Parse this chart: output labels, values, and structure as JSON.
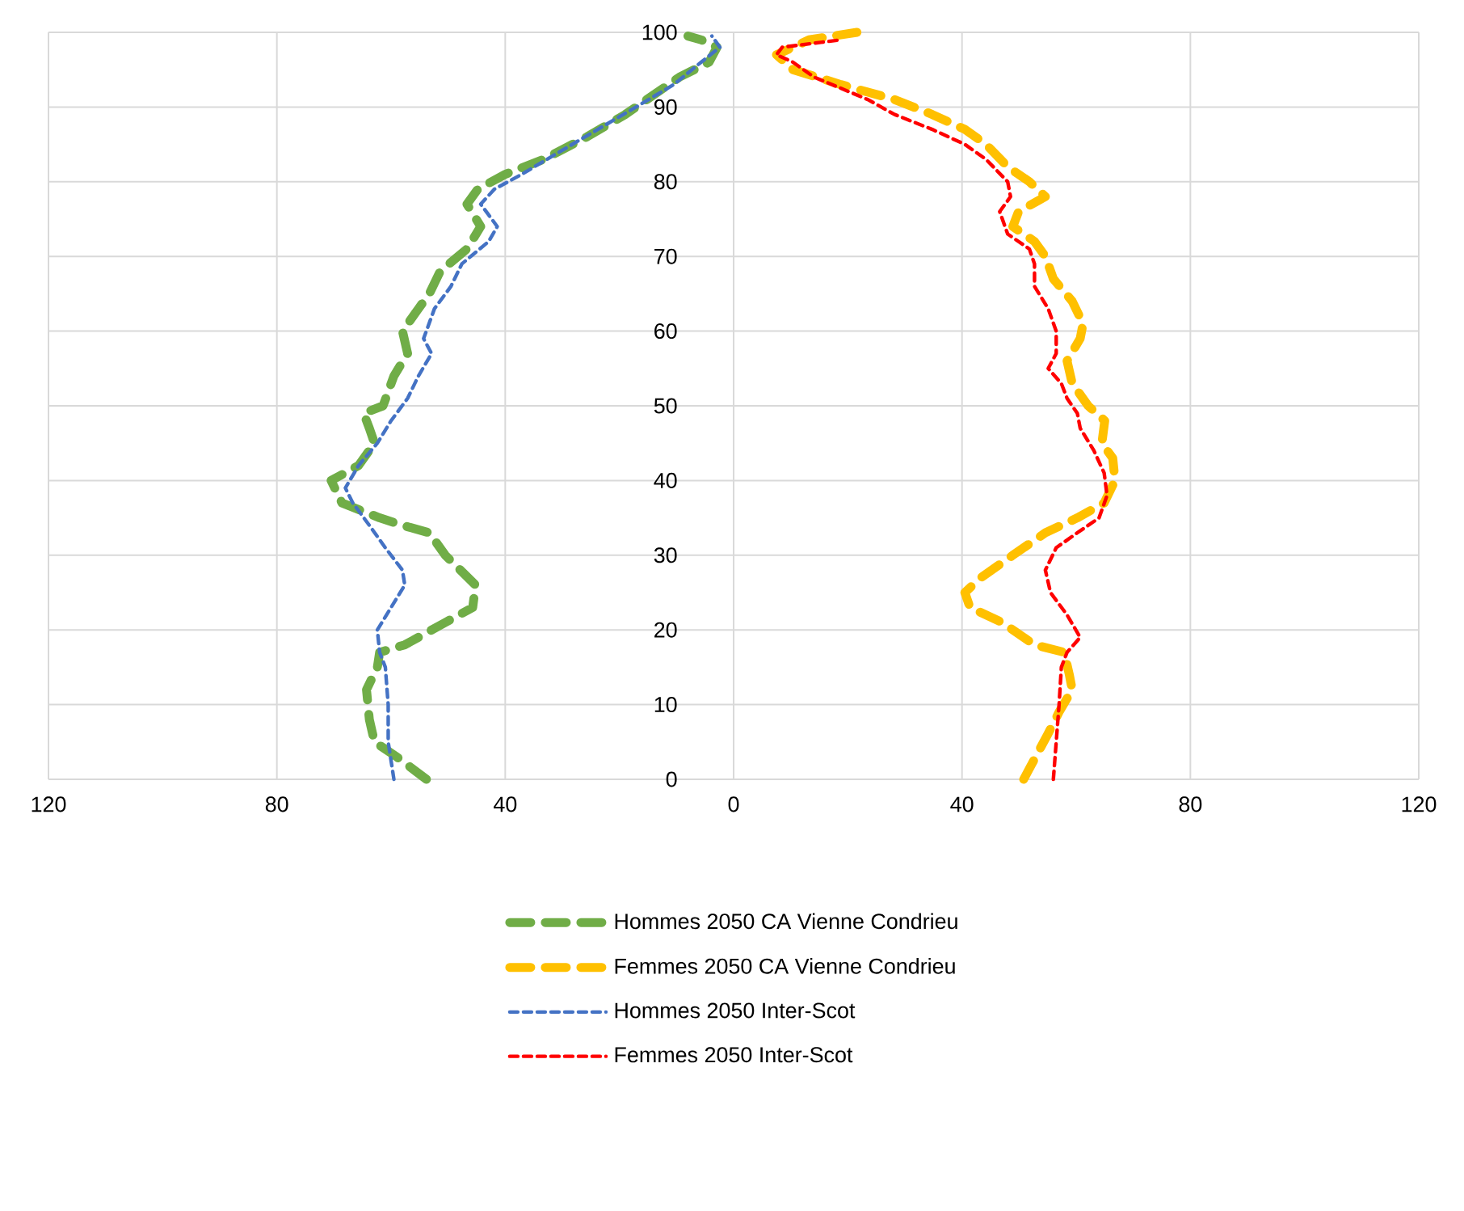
{
  "chart_data": {
    "type": "line",
    "xlim": [
      -120,
      120
    ],
    "ylim": [
      0,
      100
    ],
    "xticks": [
      {
        "value": -120,
        "label": "120"
      },
      {
        "value": -80,
        "label": "80"
      },
      {
        "value": -40,
        "label": "40"
      },
      0,
      40,
      80,
      120
    ],
    "yticks": [
      0,
      10,
      20,
      30,
      40,
      50,
      60,
      70,
      80,
      90,
      100
    ],
    "grid": true,
    "legend": "bottom",
    "line_style": "dashed",
    "marker": "none",
    "series": [
      {
        "name": "Hommes 2050 CA Vienne Condrieu",
        "color": "#70ad47",
        "x": [
          -53.8,
          -59,
          -62.9,
          -63.8,
          -64.3,
          -62.4,
          -62,
          -57.6,
          -50.5,
          -45.7,
          -45.2,
          -50.5,
          -53.3,
          -58,
          -62,
          -68.6,
          -70.5,
          -65.7,
          -62.9,
          -63.8,
          -64.8,
          -61.4,
          -59.5,
          -57.1,
          -58,
          -55.2,
          -53.3,
          -51.4,
          -46.7,
          -44.3,
          -46.7,
          -44.8,
          -40,
          -33.3,
          -25.7,
          -19,
          -15.2,
          -9.5,
          -4.3,
          -2.9,
          -5.7,
          -8
        ],
        "values": [
          0,
          3,
          5,
          8,
          12,
          15,
          17,
          18,
          21,
          23,
          26,
          30,
          33,
          34,
          35,
          37,
          40,
          42,
          45,
          47,
          49,
          50,
          54,
          57,
          60,
          63,
          65,
          68,
          71,
          74,
          77,
          79,
          81,
          83,
          86,
          89,
          91,
          94,
          96,
          98,
          99,
          99.5
        ]
      },
      {
        "name": "Femmes 2050 CA Vienne Condrieu",
        "color": "#ffc000",
        "x": [
          50.8,
          52.2,
          55,
          57,
          59.3,
          58.8,
          57.9,
          52.7,
          47,
          41.4,
          40.5,
          43.3,
          48.9,
          54.6,
          60.2,
          64.9,
          66.8,
          66.4,
          64.5,
          65,
          62.1,
          59.3,
          58.4,
          60.7,
          61.2,
          59.3,
          56,
          54.6,
          52.7,
          48.9,
          49.9,
          54.6,
          51.8,
          48,
          44.2,
          40.5,
          34.8,
          28.2,
          18.8,
          10.4,
          7.5,
          13.2,
          21.6
        ],
        "values": [
          0,
          2,
          6,
          9,
          12,
          14,
          17,
          18,
          21,
          23,
          25,
          27,
          30,
          33,
          35,
          37,
          40,
          43,
          45,
          48,
          50,
          53,
          56,
          59,
          61,
          64,
          67,
          70,
          72,
          74,
          76,
          78,
          80,
          82,
          85,
          87,
          89,
          91,
          93,
          95,
          97,
          99,
          100
        ]
      },
      {
        "name": "Hommes 2050 Inter-Scot",
        "color": "#4472c4",
        "x": [
          -59.5,
          -60.5,
          -60.5,
          -61,
          -62,
          -62.4,
          -60,
          -57.6,
          -58,
          -61,
          -63.8,
          -66.7,
          -68,
          -65.7,
          -62.4,
          -60,
          -57.1,
          -55.2,
          -52.9,
          -54.3,
          -52.4,
          -49.5,
          -47.6,
          -42.9,
          -41.4,
          -44.3,
          -41.9,
          -37.1,
          -30.5,
          -23.8,
          -17.1,
          -10.5,
          -5.7,
          -2.4,
          -3.8
        ],
        "values": [
          0,
          5,
          10,
          15,
          17,
          20,
          23,
          26,
          28,
          31,
          34,
          37,
          39,
          42,
          45,
          48,
          51,
          54,
          57,
          59,
          63,
          66,
          69,
          72,
          74,
          77,
          79,
          81,
          84,
          87,
          90,
          93,
          96,
          98,
          99.5
        ]
      },
      {
        "name": "Femmes 2050 Inter-Scot",
        "color": "#ff0000",
        "x": [
          56,
          56.5,
          57,
          57.4,
          58.4,
          60.7,
          58.4,
          55.5,
          54.6,
          56.5,
          60.2,
          64,
          65.4,
          64.9,
          63.1,
          60.7,
          60.2,
          58.4,
          57.4,
          55.1,
          56.5,
          56.5,
          55.1,
          52.7,
          52.7,
          51.8,
          48,
          46.6,
          48.5,
          48,
          44.2,
          40.5,
          34.8,
          28.2,
          23.5,
          14.1,
          10.4,
          7.5,
          8.5,
          18.8
        ],
        "values": [
          0,
          5,
          10,
          15,
          17,
          19,
          22,
          25,
          28,
          31,
          33,
          35,
          38,
          41,
          44,
          47,
          49,
          51,
          53,
          55,
          57,
          60,
          63,
          66,
          69,
          71,
          73,
          76,
          78,
          80,
          83,
          85,
          87,
          89,
          91,
          94,
          96,
          97,
          98,
          99
        ]
      }
    ]
  }
}
